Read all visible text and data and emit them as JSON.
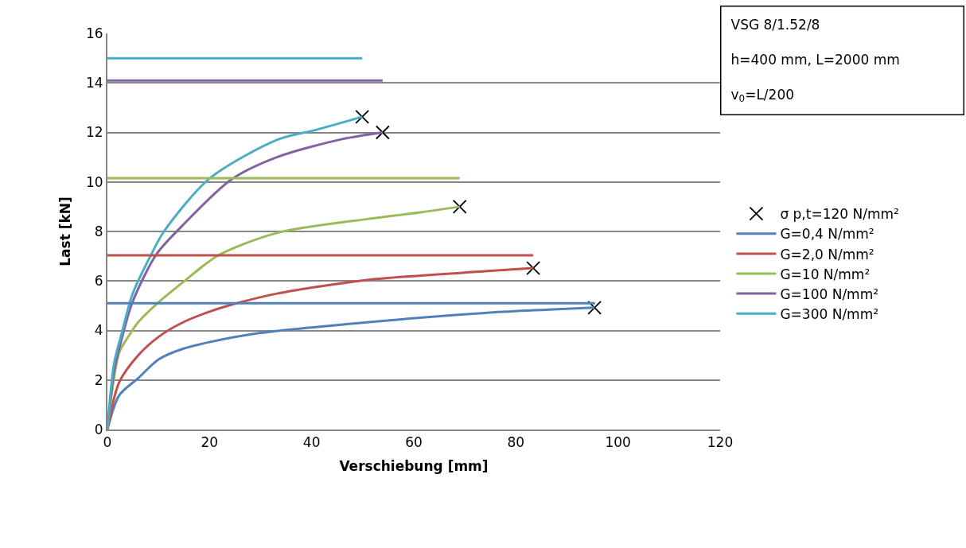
{
  "chart_data": {
    "type": "line",
    "xlabel": "Verschiebung [mm]",
    "ylabel": "Last [kN]",
    "xlim": [
      0,
      120
    ],
    "xticks": [
      0,
      20,
      40,
      60,
      80,
      100,
      120
    ],
    "ylim": [
      0,
      16
    ],
    "yticks": [
      0,
      2,
      4,
      6,
      8,
      10,
      12,
      14,
      16
    ],
    "grid": "y",
    "legend": "right",
    "line_style": "solid",
    "annotations": [
      "VSG 8/1.52/8",
      "h=400 mm, L=2000 mm",
      "v$_{0}$=L/200"
    ],
    "series": [
      {
        "name": "σ p,t=120 N/mm²",
        "type": "scatter",
        "marker": "cross",
        "color": "#000000",
        "x": [
          49.9,
          53.9,
          69.0,
          83.4,
          95.4
        ],
        "values": [
          12.63,
          12.0,
          9.0,
          6.52,
          4.92
        ]
      },
      {
        "name": "G=0,4 N/mm²",
        "color": "#4f81bd",
        "x": [
          0,
          2.3,
          6.0,
          10,
          14.8,
          20,
          30,
          51.2,
          74,
          95.4
        ],
        "values": [
          0,
          1.38,
          2.07,
          2.83,
          3.26,
          3.53,
          3.9,
          4.34,
          4.71,
          4.92
        ]
      },
      {
        "name": "G=2,0 N/mm²",
        "color": "#c0504d",
        "x": [
          0,
          2.3,
          6.0,
          10,
          14.8,
          20,
          25.2,
          33.2,
          51.2,
          74,
          83.4
        ],
        "values": [
          0,
          1.91,
          2.99,
          3.74,
          4.33,
          4.76,
          5.09,
          5.49,
          6.05,
          6.39,
          6.52
        ]
      },
      {
        "name": "G=10 N/mm²",
        "color": "#9bbb59",
        "x": [
          0,
          2.3,
          4.4,
          6.0,
          10,
          14.8,
          21.6,
          33.2,
          51.2,
          61.6,
          69.0
        ],
        "values": [
          0,
          3.1,
          3.85,
          4.33,
          5.14,
          5.95,
          7.02,
          7.94,
          8.51,
          8.78,
          9.0
        ]
      },
      {
        "name": "G=100 N/mm²",
        "color": "#8064a2",
        "x": [
          0,
          1.3,
          2.9,
          4.9,
          9.6,
          14.8,
          24.2,
          33.2,
          46,
          53.9
        ],
        "values": [
          0,
          2.34,
          3.74,
          5.14,
          7.08,
          8.26,
          10.09,
          11.0,
          11.73,
          12.0
        ]
      },
      {
        "name": "G=300 N/mm²",
        "color": "#4bacc6",
        "x": [
          0,
          1.3,
          2.9,
          4.9,
          8.6,
          11.2,
          20,
          33.2,
          40.8,
          49.9
        ],
        "values": [
          0,
          2.67,
          3.96,
          5.46,
          7.08,
          8.04,
          10.14,
          11.7,
          12.1,
          12.63
        ]
      },
      {
        "color": "#4f81bd",
        "x": [
          0,
          95.5
        ],
        "values": [
          5.1,
          5.1
        ]
      },
      {
        "color": "#c0504d",
        "x": [
          0,
          83.4
        ],
        "values": [
          7.04,
          7.04
        ]
      },
      {
        "color": "#9bbb59",
        "x": [
          0,
          69
        ],
        "values": [
          10.15,
          10.15
        ]
      },
      {
        "color": "#8064a2",
        "x": [
          0,
          53.9
        ],
        "values": [
          14.1,
          14.1
        ]
      },
      {
        "color": "#4bacc6",
        "x": [
          0,
          49.9
        ],
        "values": [
          15.0,
          15.0
        ]
      }
    ]
  }
}
